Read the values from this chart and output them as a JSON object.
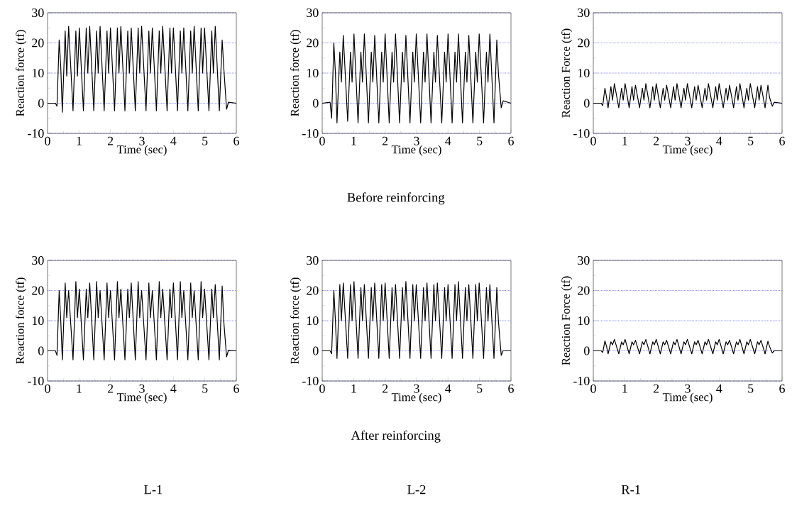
{
  "chart_data": [
    {
      "type": "line",
      "xlabel": "Time (sec)",
      "ylabel": "Reaction force (tf)",
      "color": "#000000",
      "grid": "y",
      "xlim": [
        0,
        6
      ],
      "ylim": [
        -10,
        30
      ],
      "xticks": [
        0,
        1,
        2,
        3,
        4,
        5,
        6
      ],
      "yticks": [
        -10,
        0,
        10,
        20,
        30
      ],
      "x": [
        0,
        0.25,
        0.3,
        0.37,
        0.42,
        0.47,
        0.56,
        0.61,
        0.67,
        0.81,
        0.9,
        0.95,
        1.01,
        1.14,
        1.23,
        1.28,
        1.34,
        1.47,
        1.56,
        1.61,
        1.67,
        1.8,
        1.89,
        1.94,
        2.0,
        2.13,
        2.22,
        2.27,
        2.33,
        2.46,
        2.55,
        2.6,
        2.66,
        2.79,
        2.88,
        2.93,
        2.99,
        3.13,
        3.22,
        3.27,
        3.33,
        3.46,
        3.55,
        3.6,
        3.66,
        3.8,
        3.89,
        3.94,
        4.0,
        4.13,
        4.22,
        4.27,
        4.33,
        4.46,
        4.55,
        4.6,
        4.66,
        4.79,
        4.88,
        4.93,
        4.99,
        5.13,
        5.22,
        5.27,
        5.33,
        5.46,
        5.55,
        5.6,
        5.69,
        5.75,
        6
      ],
      "values": [
        0,
        0,
        -1,
        21,
        12,
        -3,
        24,
        9,
        25.5,
        -2.5,
        24,
        9,
        25,
        -2.5,
        25,
        10,
        25.5,
        -2.5,
        24,
        10,
        25.5,
        -2.5,
        24,
        10,
        25,
        -2.5,
        25,
        10,
        25.5,
        -2.5,
        24,
        10,
        25,
        -2.5,
        25,
        10,
        25.5,
        -2.5,
        24,
        10,
        25,
        -2.5,
        24,
        10,
        25.5,
        -2.5,
        25,
        10,
        25,
        -2.5,
        24,
        10,
        25,
        -2.5,
        24,
        10,
        25.5,
        -2.5,
        25,
        10,
        25,
        -2.5,
        24,
        10,
        25.5,
        -2.5,
        21,
        12,
        -2,
        0.3,
        0
      ]
    },
    {
      "type": "line",
      "xlabel": "Time (sec)",
      "ylabel": "Reaction force (tf)",
      "color": "#000000",
      "grid": "y",
      "xlim": [
        0,
        6
      ],
      "ylim": [
        -10,
        30
      ],
      "xticks": [
        0,
        1,
        2,
        3,
        4,
        5,
        6
      ],
      "yticks": [
        -10,
        0,
        10,
        20,
        30
      ],
      "annotations": [
        "Before reinforcing"
      ],
      "x": [
        0,
        0.25,
        0.3,
        0.37,
        0.42,
        0.47,
        0.56,
        0.61,
        0.67,
        0.81,
        0.9,
        0.95,
        1.01,
        1.14,
        1.23,
        1.28,
        1.34,
        1.47,
        1.56,
        1.61,
        1.67,
        1.8,
        1.89,
        1.94,
        2.0,
        2.13,
        2.22,
        2.27,
        2.33,
        2.46,
        2.55,
        2.6,
        2.66,
        2.79,
        2.88,
        2.93,
        2.99,
        3.13,
        3.22,
        3.27,
        3.33,
        3.46,
        3.55,
        3.6,
        3.66,
        3.8,
        3.89,
        3.94,
        4.0,
        4.13,
        4.22,
        4.27,
        4.33,
        4.46,
        4.55,
        4.6,
        4.66,
        4.79,
        4.88,
        4.93,
        4.99,
        5.13,
        5.22,
        5.27,
        5.33,
        5.46,
        5.55,
        5.6,
        5.69,
        5.75,
        6
      ],
      "values": [
        0,
        0.3,
        -5,
        20,
        10,
        -6.5,
        17,
        7,
        22.5,
        -6,
        17,
        7,
        23,
        -6.5,
        17,
        7,
        23,
        -6.5,
        17,
        7,
        22.5,
        -6.5,
        17,
        7,
        23,
        -6.5,
        17,
        7,
        23,
        -6.5,
        17,
        7,
        22.5,
        -6.5,
        17,
        7,
        23,
        -6.5,
        17,
        7,
        23,
        -6.5,
        17,
        7,
        22.5,
        -6.5,
        17,
        7,
        23,
        -6.5,
        17,
        7,
        23,
        -6.5,
        17,
        7,
        22.5,
        -6.5,
        17,
        7,
        23,
        -6.5,
        17,
        7,
        23,
        -6.5,
        21,
        10,
        -1.5,
        0.8,
        0
      ]
    },
    {
      "type": "line",
      "xlabel": "Time (sec)",
      "ylabel": "Reaction Force (tf)",
      "color": "#000000",
      "grid": "y",
      "xlim": [
        0,
        6
      ],
      "ylim": [
        -10,
        30
      ],
      "xticks": [
        0,
        1,
        2,
        3,
        4,
        5,
        6
      ],
      "yticks": [
        -10,
        0,
        10,
        20,
        30
      ],
      "x": [
        0,
        0.25,
        0.3,
        0.37,
        0.42,
        0.47,
        0.56,
        0.61,
        0.67,
        0.81,
        0.9,
        0.95,
        1.01,
        1.14,
        1.23,
        1.28,
        1.34,
        1.47,
        1.56,
        1.61,
        1.67,
        1.8,
        1.89,
        1.94,
        2.0,
        2.13,
        2.22,
        2.27,
        2.33,
        2.46,
        2.55,
        2.6,
        2.66,
        2.79,
        2.88,
        2.93,
        2.99,
        3.13,
        3.22,
        3.27,
        3.33,
        3.46,
        3.55,
        3.6,
        3.66,
        3.8,
        3.89,
        3.94,
        4.0,
        4.13,
        4.22,
        4.27,
        4.33,
        4.46,
        4.55,
        4.6,
        4.66,
        4.79,
        4.88,
        4.93,
        4.99,
        5.13,
        5.22,
        5.27,
        5.33,
        5.46,
        5.55,
        5.6,
        5.69,
        5.75,
        6
      ],
      "values": [
        0,
        0,
        -0.8,
        5,
        2,
        -1.5,
        5.5,
        1,
        6.5,
        -1.5,
        5,
        1,
        6.5,
        -1.5,
        5.5,
        1,
        6,
        -1.5,
        5,
        1,
        6.5,
        -1.5,
        5.5,
        1,
        6.5,
        -1.5,
        5,
        1,
        6,
        -1.5,
        5.5,
        1,
        6.5,
        -1.5,
        5,
        1,
        6.5,
        -1.5,
        5.5,
        1,
        6,
        -1.5,
        5,
        1,
        6.5,
        -1.5,
        5.5,
        1,
        6.5,
        -1.5,
        5,
        1,
        6,
        -1.5,
        5.5,
        1,
        6.5,
        -1.5,
        5,
        1,
        6.5,
        -1.5,
        5.5,
        1,
        6,
        -1.5,
        6,
        2,
        -1,
        0.3,
        0
      ]
    },
    {
      "type": "line",
      "xlabel": "Time (sec)",
      "ylabel": "Reaction force (tf)",
      "color": "#000000",
      "grid": "y",
      "xlim": [
        0,
        6
      ],
      "ylim": [
        -10,
        30
      ],
      "xticks": [
        0,
        1,
        2,
        3,
        4,
        5,
        6
      ],
      "yticks": [
        -10,
        0,
        10,
        20,
        30
      ],
      "annotations": [
        "L-1"
      ],
      "x": [
        0,
        0.25,
        0.3,
        0.37,
        0.42,
        0.47,
        0.56,
        0.61,
        0.67,
        0.81,
        0.9,
        0.95,
        1.01,
        1.14,
        1.23,
        1.28,
        1.34,
        1.47,
        1.56,
        1.61,
        1.67,
        1.8,
        1.89,
        1.94,
        2.0,
        2.13,
        2.22,
        2.27,
        2.33,
        2.46,
        2.55,
        2.6,
        2.66,
        2.79,
        2.88,
        2.93,
        2.99,
        3.13,
        3.22,
        3.27,
        3.33,
        3.46,
        3.55,
        3.6,
        3.66,
        3.8,
        3.89,
        3.94,
        4.0,
        4.13,
        4.22,
        4.27,
        4.33,
        4.46,
        4.55,
        4.6,
        4.66,
        4.79,
        4.88,
        4.93,
        4.99,
        5.13,
        5.22,
        5.27,
        5.33,
        5.46,
        5.55,
        5.6,
        5.69,
        5.75,
        6
      ],
      "values": [
        0,
        0,
        -1.5,
        20,
        10,
        -3,
        22.5,
        11,
        20,
        -3,
        23,
        11,
        20.5,
        -3,
        20.5,
        11,
        22.5,
        -3,
        23,
        11,
        20,
        -3,
        22.5,
        11,
        20,
        -3,
        23,
        11,
        20.5,
        -3,
        20.5,
        11,
        22.5,
        -3,
        23,
        11,
        20,
        -3,
        22.5,
        11,
        20,
        -3,
        23,
        11,
        20.5,
        -3,
        20.5,
        11,
        22.5,
        -3,
        23,
        11,
        20,
        -3,
        22.5,
        11,
        20,
        -3,
        23,
        11,
        20.5,
        -3,
        20.5,
        11,
        22,
        -3,
        21.5,
        10,
        -2,
        0.2,
        0
      ]
    },
    {
      "type": "line",
      "xlabel": "Time (sec)",
      "ylabel": "Reaction force (tf)",
      "color": "#000000",
      "grid": "y",
      "xlim": [
        0,
        6
      ],
      "ylim": [
        -10,
        30
      ],
      "xticks": [
        0,
        1,
        2,
        3,
        4,
        5,
        6
      ],
      "yticks": [
        -10,
        0,
        10,
        20,
        30
      ],
      "annotations": [
        "After reinforcing",
        "L-2"
      ],
      "x": [
        0,
        0.25,
        0.3,
        0.37,
        0.42,
        0.47,
        0.56,
        0.61,
        0.67,
        0.81,
        0.9,
        0.95,
        1.01,
        1.14,
        1.23,
        1.28,
        1.34,
        1.47,
        1.56,
        1.61,
        1.67,
        1.8,
        1.89,
        1.94,
        2.0,
        2.13,
        2.22,
        2.27,
        2.33,
        2.46,
        2.55,
        2.6,
        2.66,
        2.79,
        2.88,
        2.93,
        2.99,
        3.13,
        3.22,
        3.27,
        3.33,
        3.46,
        3.55,
        3.6,
        3.66,
        3.8,
        3.89,
        3.94,
        4.0,
        4.13,
        4.22,
        4.27,
        4.33,
        4.46,
        4.55,
        4.6,
        4.66,
        4.79,
        4.88,
        4.93,
        4.99,
        5.13,
        5.22,
        5.27,
        5.33,
        5.46,
        5.55,
        5.6,
        5.69,
        5.75,
        6
      ],
      "values": [
        0,
        0,
        -1,
        20,
        10,
        -2.5,
        22,
        10,
        22.5,
        -2.5,
        22,
        10,
        23,
        -2.5,
        21,
        10,
        22,
        -2.5,
        21,
        10,
        22.5,
        -2.5,
        22,
        10,
        22.5,
        -2.5,
        21,
        10,
        22,
        -2.5,
        21,
        10,
        23,
        -2.5,
        22,
        10,
        22,
        -2.5,
        21,
        10,
        22.5,
        -2.5,
        22,
        10,
        22.5,
        -2.5,
        21,
        10,
        22,
        -2.5,
        22,
        10,
        23,
        -2.5,
        21,
        10,
        22,
        -2.5,
        22,
        10,
        22.5,
        -2.5,
        21,
        10,
        22,
        -2.5,
        21,
        10,
        -1.5,
        0,
        0
      ]
    },
    {
      "type": "line",
      "xlabel": "Time (sec)",
      "ylabel": "Reaction Force (tf)",
      "color": "#000000",
      "grid": "y",
      "xlim": [
        0,
        6
      ],
      "ylim": [
        -10,
        30
      ],
      "xticks": [
        0,
        1,
        2,
        3,
        4,
        5,
        6
      ],
      "yticks": [
        -10,
        0,
        10,
        20,
        30
      ],
      "annotations": [
        "R-1"
      ],
      "x": [
        0,
        0.25,
        0.3,
        0.37,
        0.42,
        0.47,
        0.56,
        0.61,
        0.67,
        0.81,
        0.9,
        0.95,
        1.01,
        1.14,
        1.23,
        1.28,
        1.34,
        1.47,
        1.56,
        1.61,
        1.67,
        1.8,
        1.89,
        1.94,
        2.0,
        2.13,
        2.22,
        2.27,
        2.33,
        2.46,
        2.55,
        2.6,
        2.66,
        2.79,
        2.88,
        2.93,
        2.99,
        3.13,
        3.22,
        3.27,
        3.33,
        3.46,
        3.55,
        3.6,
        3.66,
        3.8,
        3.89,
        3.94,
        4.0,
        4.13,
        4.22,
        4.27,
        4.33,
        4.46,
        4.55,
        4.6,
        4.66,
        4.79,
        4.88,
        4.93,
        4.99,
        5.13,
        5.22,
        5.27,
        5.33,
        5.46,
        5.55,
        5.6,
        5.69,
        5.75,
        6
      ],
      "values": [
        0,
        0,
        -0.5,
        3.3,
        1.5,
        -1,
        3,
        2,
        3.8,
        -1,
        3,
        2,
        3.8,
        -1,
        3,
        2,
        3.5,
        -1,
        3,
        2,
        3.8,
        -1,
        3,
        2,
        3.8,
        -1,
        3,
        2,
        3.5,
        -1,
        3,
        2,
        3.8,
        -1,
        3,
        2,
        3.8,
        -1,
        3,
        2,
        3.5,
        -1,
        3,
        2,
        3.8,
        -1,
        3,
        2,
        3.8,
        -1,
        3,
        2,
        3.5,
        -1,
        3,
        2,
        3.8,
        -1,
        3,
        2,
        3.8,
        -1,
        3,
        2,
        3.5,
        -1,
        3.2,
        1.5,
        -0.7,
        0,
        0
      ]
    }
  ]
}
